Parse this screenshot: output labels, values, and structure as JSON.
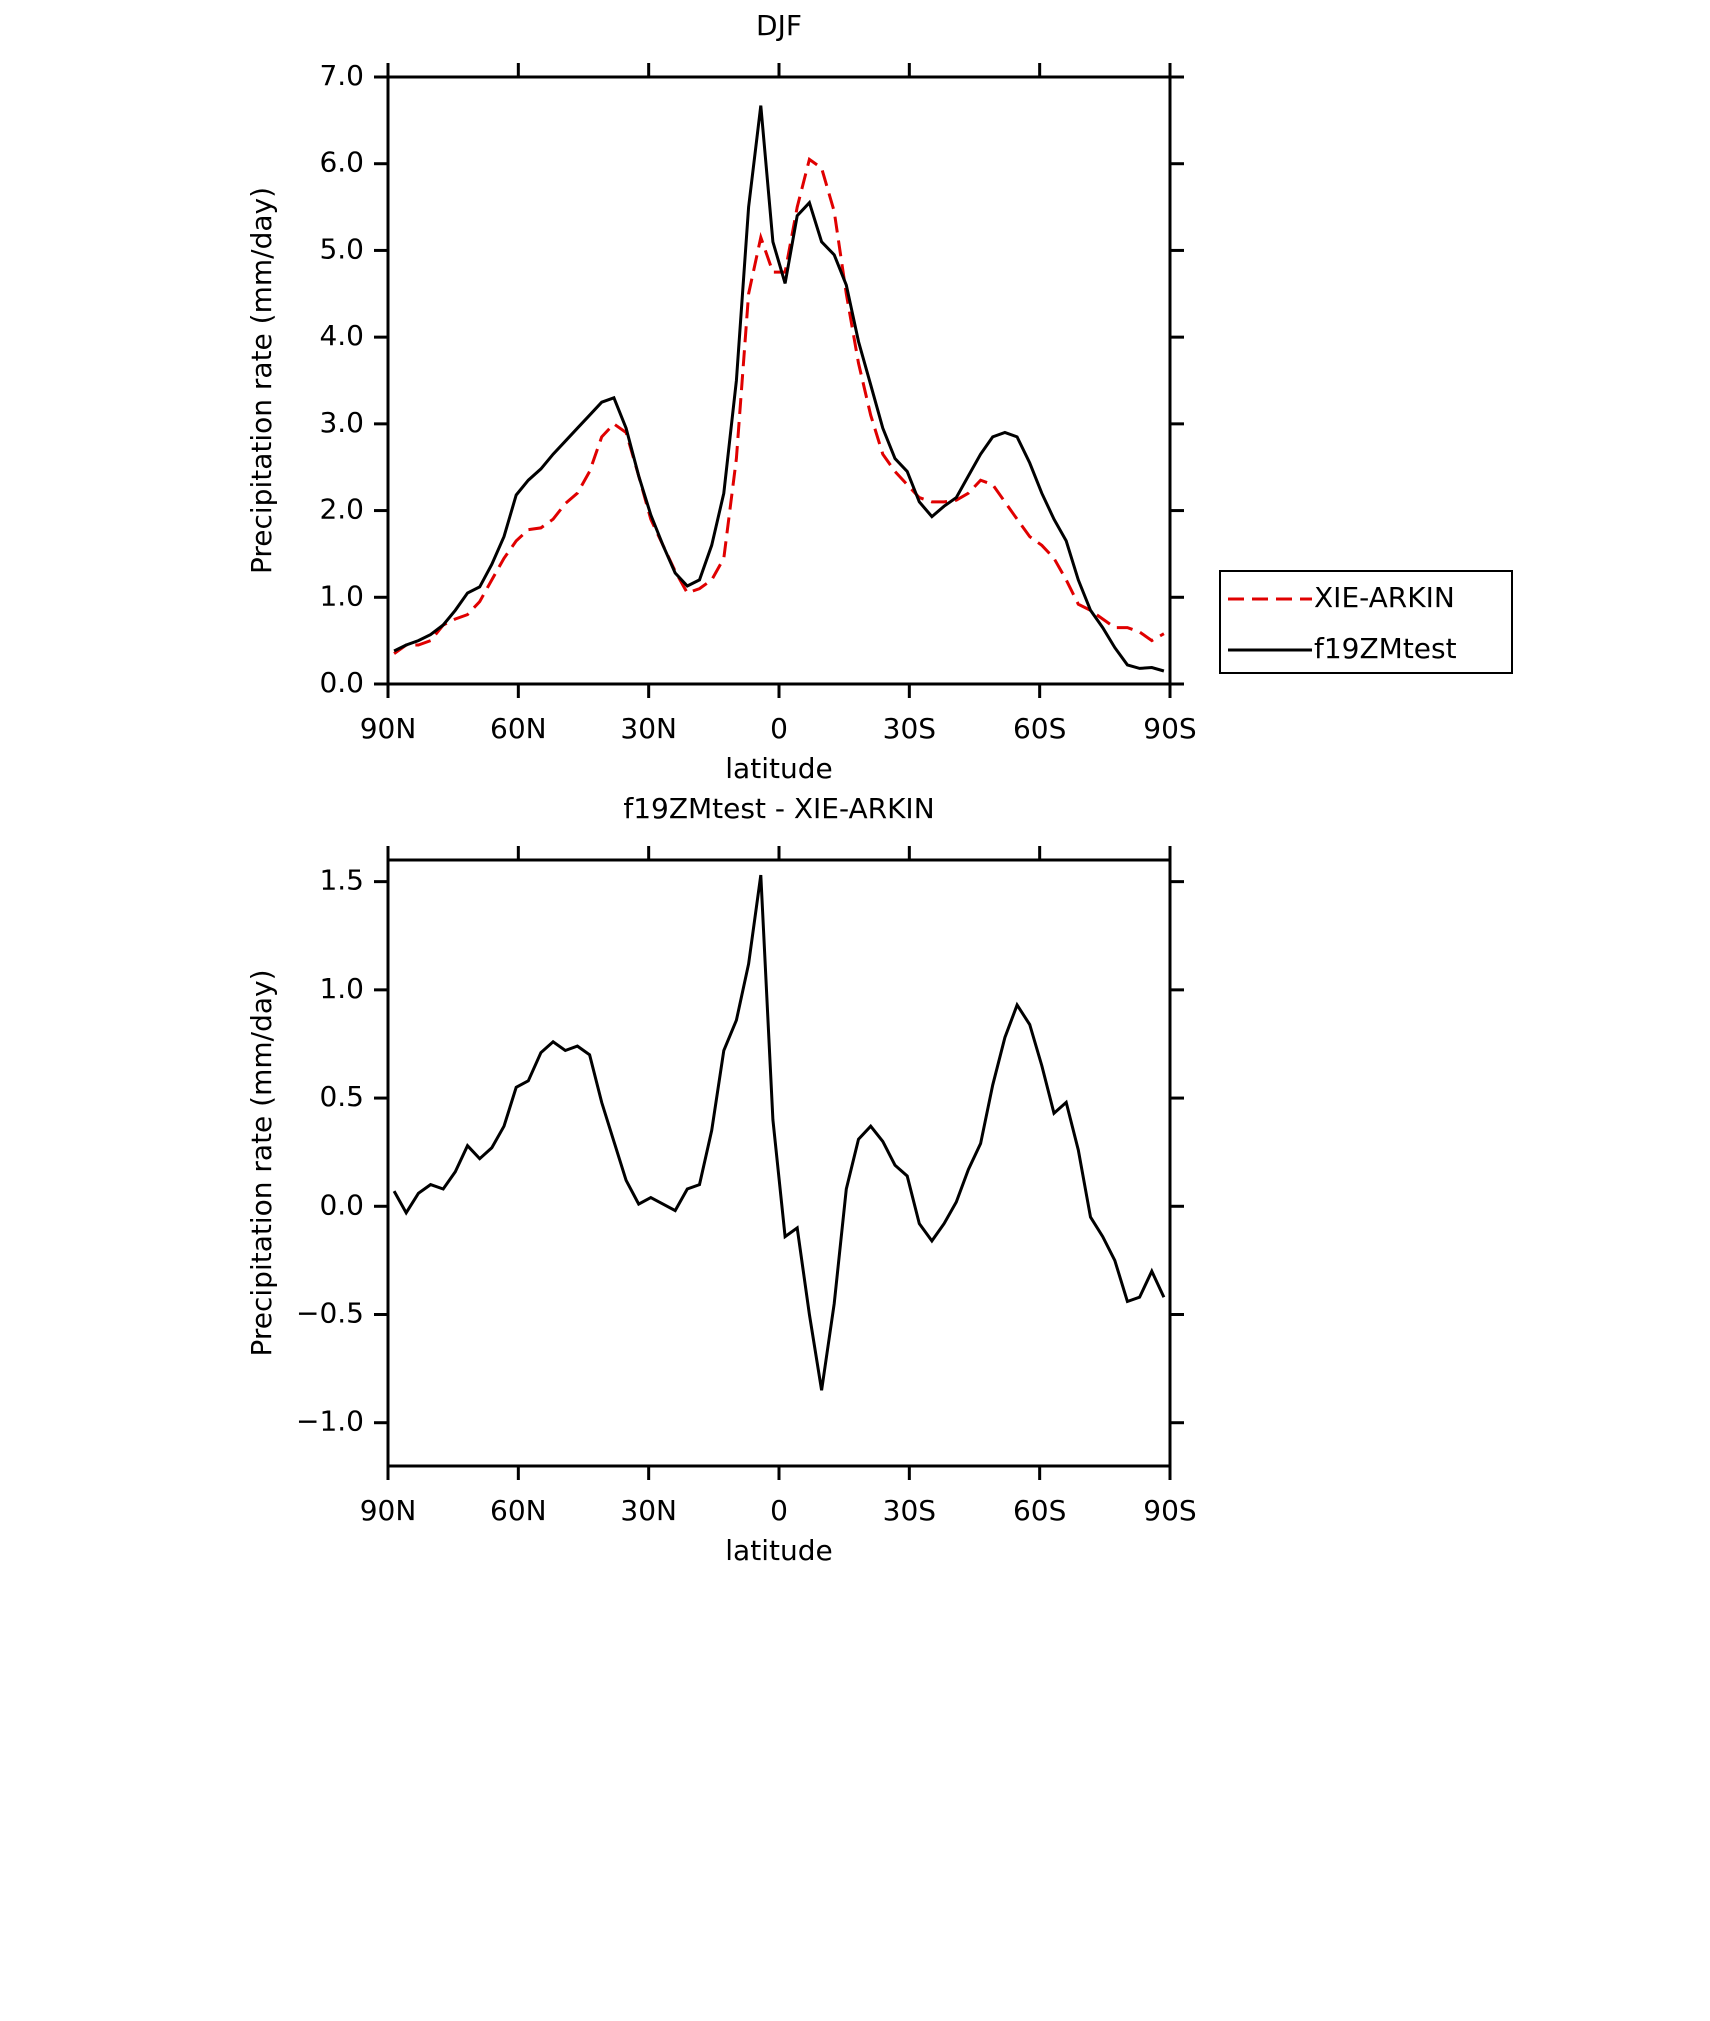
{
  "chart_data": [
    {
      "type": "line",
      "title": "DJF",
      "xlabel": "latitude",
      "ylabel": "Precipitation rate (mm/day)",
      "x": [
        88.6,
        85.8,
        83.0,
        80.2,
        77.3,
        74.5,
        71.7,
        68.9,
        66.1,
        63.3,
        60.5,
        57.7,
        54.8,
        52.0,
        49.2,
        46.4,
        43.6,
        40.8,
        38.0,
        35.2,
        32.3,
        29.5,
        26.7,
        23.9,
        21.1,
        18.3,
        15.5,
        12.7,
        9.8,
        7.0,
        4.2,
        1.4,
        -1.4,
        -4.2,
        -7.0,
        -9.8,
        -12.7,
        -15.5,
        -18.3,
        -21.1,
        -23.9,
        -26.7,
        -29.5,
        -32.3,
        -35.2,
        -38.0,
        -40.8,
        -43.6,
        -46.4,
        -49.2,
        -52.0,
        -54.8,
        -57.7,
        -60.5,
        -63.3,
        -66.1,
        -68.9,
        -71.7,
        -74.5,
        -77.3,
        -80.2,
        -83.0,
        -85.8,
        -88.6
      ],
      "xlim": [
        90,
        -90
      ],
      "xticks": [
        {
          "value": 90,
          "label": "90N"
        },
        {
          "value": 60,
          "label": "60N"
        },
        {
          "value": 30,
          "label": "30N"
        },
        0,
        {
          "value": -30,
          "label": "30S"
        },
        {
          "value": -60,
          "label": "60S"
        },
        {
          "value": -90,
          "label": "90S"
        }
      ],
      "ylim": [
        0,
        7
      ],
      "yticks": [
        {
          "value": 0,
          "label": "0.0"
        },
        {
          "value": 1,
          "label": "1.0"
        },
        {
          "value": 2,
          "label": "2.0"
        },
        {
          "value": 3,
          "label": "3.0"
        },
        {
          "value": 4,
          "label": "4.0"
        },
        {
          "value": 5,
          "label": "5.0"
        },
        {
          "value": 6,
          "label": "6.0"
        },
        {
          "value": 7,
          "label": "7.0"
        }
      ],
      "legend": "right",
      "series": [
        {
          "name": "XIE-ARKIN",
          "color": "#e00000",
          "linestyle": "dashed",
          "values": [
            0.35,
            0.45,
            0.45,
            0.5,
            0.68,
            0.75,
            0.8,
            0.95,
            1.2,
            1.45,
            1.65,
            1.78,
            1.8,
            1.9,
            2.08,
            2.2,
            2.45,
            2.85,
            3.0,
            2.9,
            2.4,
            1.9,
            1.6,
            1.3,
            1.05,
            1.1,
            1.2,
            1.45,
            2.6,
            4.5,
            5.15,
            4.75,
            4.75,
            5.5,
            6.05,
            5.95,
            5.45,
            4.5,
            3.7,
            3.1,
            2.65,
            2.45,
            2.3,
            2.15,
            2.1,
            2.1,
            2.12,
            2.2,
            2.35,
            2.3,
            2.1,
            1.9,
            1.7,
            1.6,
            1.45,
            1.2,
            0.92,
            0.85,
            0.75,
            0.65,
            0.65,
            0.6,
            0.5,
            0.58
          ]
        },
        {
          "name": "f19ZMtest",
          "color": "#000000",
          "linestyle": "solid",
          "values": [
            0.38,
            0.45,
            0.5,
            0.57,
            0.68,
            0.85,
            1.05,
            1.12,
            1.38,
            1.7,
            2.18,
            2.35,
            2.48,
            2.65,
            2.8,
            2.95,
            3.1,
            3.25,
            3.3,
            2.95,
            2.4,
            1.95,
            1.6,
            1.28,
            1.13,
            1.2,
            1.6,
            2.2,
            3.5,
            5.5,
            6.67,
            5.1,
            4.62,
            5.4,
            5.55,
            5.1,
            4.95,
            4.6,
            3.95,
            3.45,
            2.95,
            2.6,
            2.45,
            2.1,
            1.93,
            2.05,
            2.15,
            2.4,
            2.65,
            2.85,
            2.9,
            2.85,
            2.55,
            2.2,
            1.9,
            1.65,
            1.2,
            0.85,
            0.65,
            0.42,
            0.22,
            0.18,
            0.19,
            0.15
          ]
        }
      ]
    },
    {
      "type": "line",
      "title": "f19ZMtest - XIE-ARKIN",
      "xlabel": "latitude",
      "ylabel": "Precipitation rate (mm/day)",
      "x": [
        88.6,
        85.8,
        83.0,
        80.2,
        77.3,
        74.5,
        71.7,
        68.9,
        66.1,
        63.3,
        60.5,
        57.7,
        54.8,
        52.0,
        49.2,
        46.4,
        43.6,
        40.8,
        38.0,
        35.2,
        32.3,
        29.5,
        26.7,
        23.9,
        21.1,
        18.3,
        15.5,
        12.7,
        9.8,
        7.0,
        4.2,
        1.4,
        -1.4,
        -4.2,
        -7.0,
        -9.8,
        -12.7,
        -15.5,
        -18.3,
        -21.1,
        -23.9,
        -26.7,
        -29.5,
        -32.3,
        -35.2,
        -38.0,
        -40.8,
        -43.6,
        -46.4,
        -49.2,
        -52.0,
        -54.8,
        -57.7,
        -60.5,
        -63.3,
        -66.1,
        -68.9,
        -71.7,
        -74.5,
        -77.3,
        -80.2,
        -83.0,
        -85.8,
        -88.6
      ],
      "xlim": [
        90,
        -90
      ],
      "xticks": [
        {
          "value": 90,
          "label": "90N"
        },
        {
          "value": 60,
          "label": "60N"
        },
        {
          "value": 30,
          "label": "30N"
        },
        0,
        {
          "value": -30,
          "label": "30S"
        },
        {
          "value": -60,
          "label": "60S"
        },
        {
          "value": -90,
          "label": "90S"
        }
      ],
      "ylim": [
        -1.2,
        1.6
      ],
      "yticks": [
        {
          "value": -1,
          "label": "−1.0"
        },
        {
          "value": -0.5,
          "label": "−0.5"
        },
        {
          "value": 0,
          "label": "0.0"
        },
        0.5,
        {
          "value": 1,
          "label": "1.0"
        },
        1.5
      ],
      "color": "#000000",
      "values": [
        0.07,
        -0.03,
        0.06,
        0.1,
        0.08,
        0.16,
        0.28,
        0.22,
        0.27,
        0.37,
        0.55,
        0.58,
        0.71,
        0.76,
        0.72,
        0.74,
        0.7,
        0.48,
        0.3,
        0.12,
        0.01,
        0.04,
        0.01,
        -0.02,
        0.08,
        0.1,
        0.35,
        0.72,
        0.86,
        1.12,
        1.53,
        0.4,
        -0.14,
        -0.1,
        -0.5,
        -0.85,
        -0.45,
        0.08,
        0.31,
        0.37,
        0.3,
        0.19,
        0.14,
        -0.08,
        -0.16,
        -0.08,
        0.02,
        0.17,
        0.29,
        0.56,
        0.78,
        0.93,
        0.84,
        0.65,
        0.43,
        0.48,
        0.26,
        -0.05,
        -0.14,
        -0.25,
        -0.44,
        -0.42,
        -0.3,
        -0.42
      ]
    }
  ]
}
